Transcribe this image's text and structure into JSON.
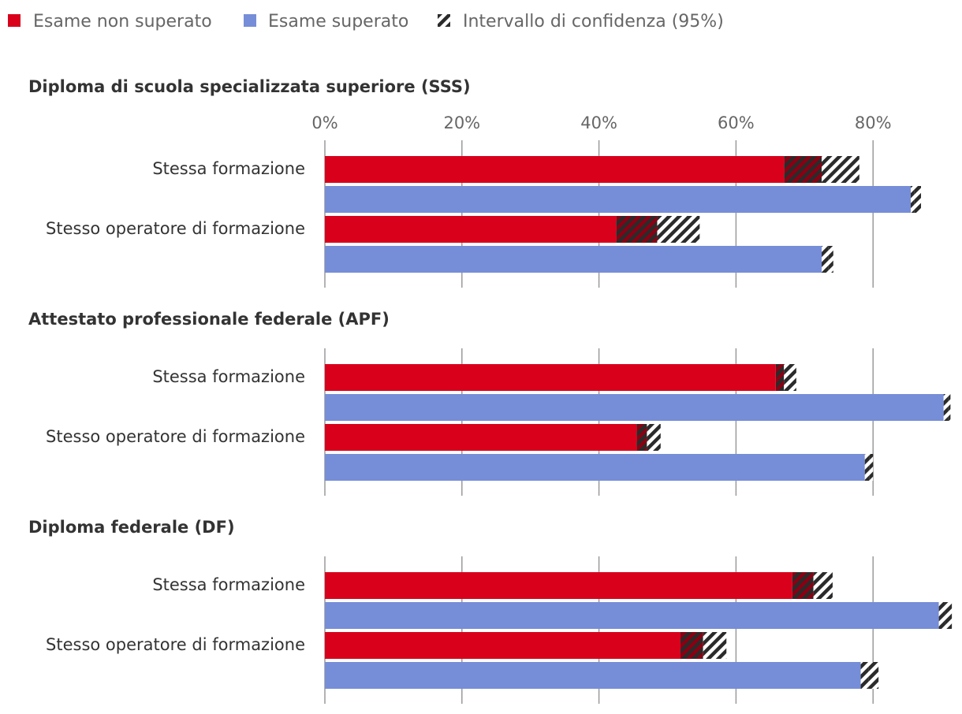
{
  "chart_data": {
    "type": "bar",
    "orientation": "horizontal",
    "legend": {
      "placement": "top-left",
      "items": [
        {
          "key": "fail",
          "label": "Esame non superato",
          "color": "#d9001b"
        },
        {
          "key": "pass",
          "label": "Esame superato",
          "color": "#768dd8"
        },
        {
          "key": "ci",
          "label": "Intervallo di confidenza (95%)",
          "color": "#333333"
        }
      ]
    },
    "xaxis": {
      "min": 0,
      "max": 91,
      "ticks": [
        0,
        20,
        40,
        60,
        80
      ],
      "tick_labels": [
        "0%",
        "20%",
        "40%",
        "60%",
        "80%"
      ],
      "grid": true
    },
    "categories": [
      "Stessa formazione",
      "Stesso operatore di formazione"
    ],
    "panels": [
      {
        "title": "Diploma di scuola specializzata superiore (SSS)",
        "show_tick_labels": true,
        "groups": [
          {
            "category": "Stessa formazione",
            "fail": {
              "value": 72.5,
              "ci_low": 67,
              "ci_high": 78
            },
            "pass": {
              "value": 86,
              "ci_low": 85.5,
              "ci_high": 87
            }
          },
          {
            "category": "Stesso operatore di formazione",
            "fail": {
              "value": 48.5,
              "ci_low": 42.5,
              "ci_high": 54.7
            },
            "pass": {
              "value": 73.5,
              "ci_low": 72.5,
              "ci_high": 74.2
            }
          }
        ]
      },
      {
        "title": "Attestato professionale federale (APF)",
        "show_tick_labels": false,
        "groups": [
          {
            "category": "Stessa formazione",
            "fail": {
              "value": 67,
              "ci_low": 65.8,
              "ci_high": 68.8
            },
            "pass": {
              "value": 91,
              "ci_low": 90.3,
              "ci_high": 91.3
            }
          },
          {
            "category": "Stesso operatore di formazione",
            "fail": {
              "value": 47,
              "ci_low": 45.5,
              "ci_high": 49
            },
            "pass": {
              "value": 79.5,
              "ci_low": 78.8,
              "ci_high": 80
            }
          }
        ]
      },
      {
        "title": "Diploma federale (DF)",
        "show_tick_labels": false,
        "groups": [
          {
            "category": "Stessa formazione",
            "fail": {
              "value": 71.3,
              "ci_low": 68.2,
              "ci_high": 74.1
            },
            "pass": {
              "value": 90.5,
              "ci_low": 89.6,
              "ci_high": 91.5
            }
          },
          {
            "category": "Stesso operatore di formazione",
            "fail": {
              "value": 55.2,
              "ci_low": 51.9,
              "ci_high": 58.6
            },
            "pass": {
              "value": 79.3,
              "ci_low": 78.2,
              "ci_high": 80.8
            }
          }
        ]
      }
    ]
  }
}
